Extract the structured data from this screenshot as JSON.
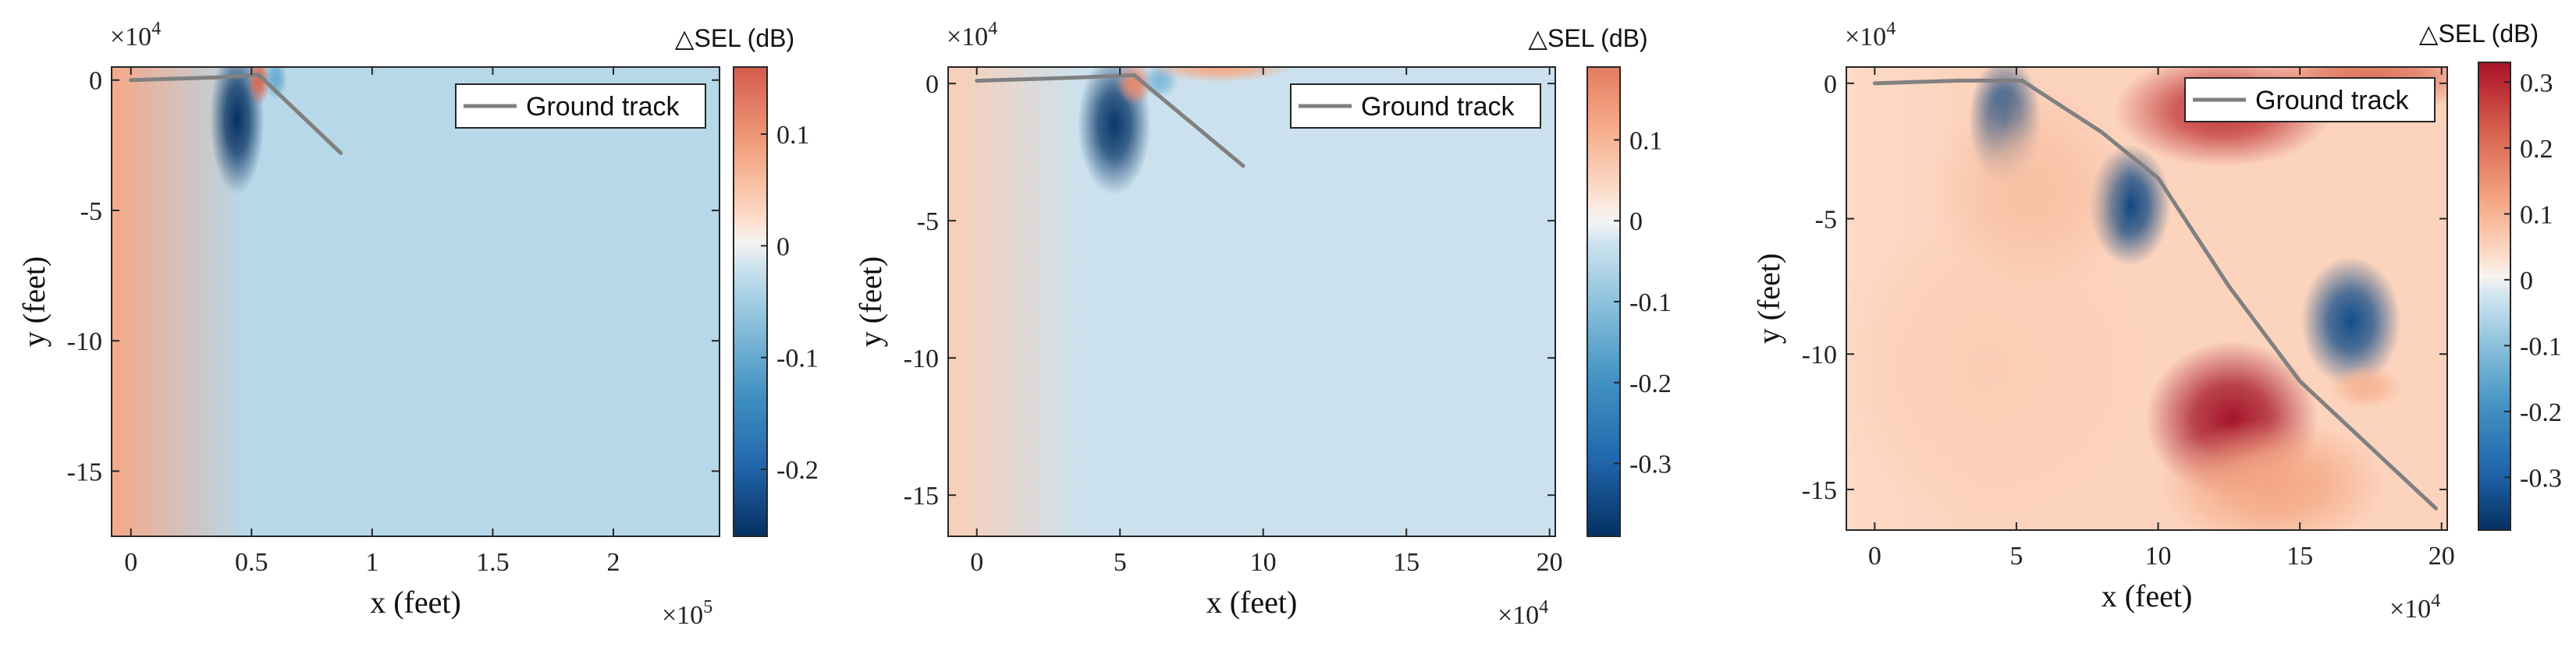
{
  "figure": {
    "description_free": true
  },
  "colors": {
    "track": "#808080",
    "axis": "#262626"
  },
  "chart_data": [
    {
      "type": "heatmap",
      "panel": "left",
      "title": "",
      "xlabel": "x (feet)",
      "ylabel": "y (feet)",
      "x_multiplier": "×10",
      "x_multiplier_exp": "5",
      "y_multiplier": "×10",
      "y_multiplier_exp": "4",
      "xlim": [
        -0.08,
        2.44
      ],
      "ylim": [
        -17.5,
        0.5
      ],
      "xticks": [
        0,
        0.5,
        1,
        1.5,
        2
      ],
      "xtick_labels": [
        "0",
        "0.5",
        "1",
        "1.5",
        "2"
      ],
      "yticks": [
        0,
        -5,
        -10,
        -15
      ],
      "ytick_labels": [
        "0",
        "-5",
        "-10",
        "-15"
      ],
      "colorbar_title": "△SEL (dB)",
      "clim": [
        -0.26,
        0.16
      ],
      "cticks": [
        0.1,
        0,
        -0.1,
        -0.2
      ],
      "ctick_labels": [
        "0.1",
        "0",
        "-0.1",
        "-0.2"
      ],
      "legend": "Ground track",
      "legend_loc": "top-right",
      "ground_track": {
        "x": [
          0,
          0.35,
          0.53,
          0.87
        ],
        "y": [
          0,
          0.1,
          0.2,
          -2.8
        ]
      },
      "blobs": [
        {
          "x": 0.44,
          "y": -1.5,
          "v": -0.26,
          "sx": 0.07,
          "sy": 1.8
        },
        {
          "x": 0.53,
          "y": 0.0,
          "v": 0.15,
          "sx": 0.03,
          "sy": 0.6
        },
        {
          "x": 0.6,
          "y": 0.05,
          "v": -0.1,
          "sx": 0.03,
          "sy": 0.5
        }
      ],
      "left_edge_value": 0.08,
      "background_value": -0.035
    },
    {
      "type": "heatmap",
      "panel": "middle",
      "title": "",
      "xlabel": "x (feet)",
      "ylabel": "y (feet)",
      "x_multiplier": "×10",
      "x_multiplier_exp": "4",
      "y_multiplier": "×10",
      "y_multiplier_exp": "4",
      "xlim": [
        -1,
        20.2
      ],
      "ylim": [
        -16.5,
        0.6
      ],
      "xticks": [
        0,
        5,
        10,
        15,
        20
      ],
      "xtick_labels": [
        "0",
        "5",
        "10",
        "15",
        "20"
      ],
      "yticks": [
        0,
        -5,
        -10,
        -15
      ],
      "ytick_labels": [
        "0",
        "-5",
        "-10",
        "-15"
      ],
      "colorbar_title": "△SEL (dB)",
      "clim": [
        -0.39,
        0.19
      ],
      "cticks": [
        0.1,
        0,
        -0.1,
        -0.2,
        -0.3
      ],
      "ctick_labels": [
        "0.1",
        "0",
        "-0.1",
        "-0.2",
        "-0.3"
      ],
      "legend": "Ground track",
      "legend_loc": "top-right",
      "ground_track": {
        "x": [
          0,
          3,
          5.5,
          9.3
        ],
        "y": [
          0.1,
          0.2,
          0.3,
          -3.0
        ]
      },
      "blobs": [
        {
          "x": 4.8,
          "y": -1.5,
          "v": -0.38,
          "sx": 0.8,
          "sy": 1.6
        },
        {
          "x": 5.5,
          "y": 0.0,
          "v": 0.17,
          "sx": 0.4,
          "sy": 0.5
        },
        {
          "x": 6.4,
          "y": 0.1,
          "v": -0.12,
          "sx": 0.4,
          "sy": 0.4
        },
        {
          "x": 8.5,
          "y": 0.6,
          "v": 0.12,
          "sx": 1.6,
          "sy": 0.35
        }
      ],
      "left_edge_value": 0.06,
      "background_value": -0.03
    },
    {
      "type": "heatmap",
      "panel": "right",
      "title": "",
      "xlabel": "x (feet)",
      "ylabel": "y (feet)",
      "x_multiplier": "×10",
      "x_multiplier_exp": "4",
      "y_multiplier": "×10",
      "y_multiplier_exp": "4",
      "xlim": [
        -1,
        20.2
      ],
      "ylim": [
        -16.5,
        0.6
      ],
      "xticks": [
        0,
        5,
        10,
        15,
        20
      ],
      "xtick_labels": [
        "0",
        "5",
        "10",
        "15",
        "20"
      ],
      "yticks": [
        0,
        -5,
        -10,
        -15
      ],
      "ytick_labels": [
        "0",
        "-5",
        "-10",
        "-15"
      ],
      "colorbar_title": "△SEL (dB)",
      "clim": [
        -0.38,
        0.33
      ],
      "cticks": [
        0.3,
        0.2,
        0.1,
        0,
        -0.1,
        -0.2,
        -0.3
      ],
      "ctick_labels": [
        "0.3",
        "0.2",
        "0.1",
        "0",
        "-0.1",
        "-0.2",
        "-0.3"
      ],
      "legend": "Ground track",
      "legend_loc": "top-right",
      "ground_track": {
        "x": [
          0,
          3,
          5.2,
          8,
          10,
          12.5,
          15,
          19.8
        ],
        "y": [
          0,
          0.1,
          0.1,
          -1.8,
          -3.5,
          -7.5,
          -11,
          -15.7
        ]
      },
      "blobs": [
        {
          "x": 4.6,
          "y": -1.4,
          "v": -0.34,
          "sx": 0.8,
          "sy": 1.5
        },
        {
          "x": 9.0,
          "y": -4.5,
          "v": -0.34,
          "sx": 0.9,
          "sy": 1.4
        },
        {
          "x": 16.8,
          "y": -8.8,
          "v": -0.33,
          "sx": 1.1,
          "sy": 1.5
        },
        {
          "x": 12.6,
          "y": -12.4,
          "v": 0.33,
          "sx": 1.9,
          "sy": 1.8
        },
        {
          "x": 12.3,
          "y": -1.0,
          "v": 0.28,
          "sx": 2.4,
          "sy": 1.3
        },
        {
          "x": 17.5,
          "y": 0.2,
          "v": 0.2,
          "sx": 2.5,
          "sy": 0.8
        },
        {
          "x": 5.5,
          "y": -4.0,
          "v": 0.08,
          "sx": 2.2,
          "sy": 2.5
        },
        {
          "x": 4.0,
          "y": -10.5,
          "v": 0.06,
          "sx": 3.5,
          "sy": 3.5
        },
        {
          "x": 14.0,
          "y": -14.8,
          "v": 0.12,
          "sx": 2.5,
          "sy": 1.5
        },
        {
          "x": 17.3,
          "y": -11.2,
          "v": 0.1,
          "sx": 0.8,
          "sy": 0.5
        }
      ],
      "left_edge_value": 0.04,
      "background_value": 0.05
    }
  ]
}
